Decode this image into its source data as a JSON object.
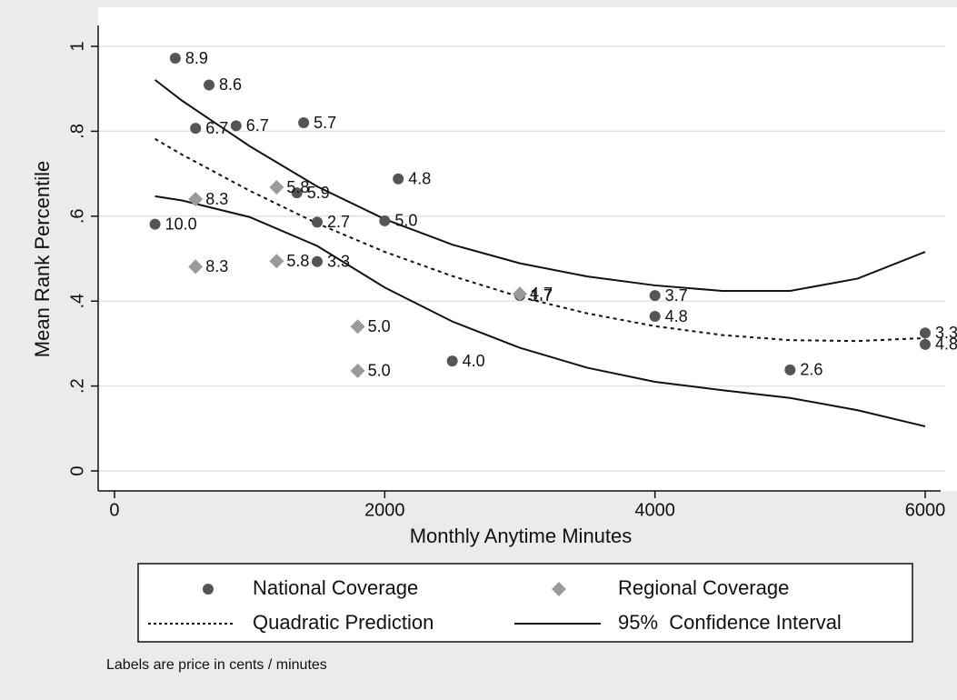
{
  "chart_data": {
    "type": "scatter",
    "xlabel": "Monthly Anytime Minutes",
    "ylabel": "Mean Rank Percentile",
    "note": "Labels are price in cents / minutes",
    "xlim": [
      -121,
      6148
    ],
    "ylim": [
      -0.047,
      1.092
    ],
    "xticks": [
      0,
      2000,
      4000,
      6000
    ],
    "yticks": [
      0,
      {
        "value": 0.2,
        "label": ".2"
      },
      {
        "value": 0.4,
        "label": ".4"
      },
      {
        "value": 0.6,
        "label": ".6"
      },
      {
        "value": 0.8,
        "label": ".8"
      },
      1
    ],
    "grid": true,
    "series": [
      {
        "name": "National Coverage",
        "kind": "points",
        "marker": "circle",
        "color": "#555555",
        "x": [
          450,
          700,
          600,
          900,
          1400,
          2100,
          300,
          1350,
          1500,
          2000,
          1500,
          3000,
          4000,
          4000,
          2500,
          5000,
          6000,
          6000
        ],
        "values": [
          0.972,
          0.909,
          0.807,
          0.813,
          0.82,
          0.688,
          0.581,
          0.655,
          0.586,
          0.589,
          0.493,
          0.413,
          0.413,
          0.364,
          0.259,
          0.238,
          0.325,
          0.298
        ],
        "point_labels": [
          "8.9",
          "8.6",
          "6.7",
          "6.7",
          "5.7",
          "4.8",
          "10.0",
          "5.9",
          "2.7",
          "5.0",
          "3.3",
          "1.7",
          "3.7",
          "4.8",
          "4.0",
          "2.6",
          "3.3",
          "4.8"
        ]
      },
      {
        "name": "Regional Coverage",
        "kind": "points",
        "marker": "diamond",
        "color": "#9a9a9a",
        "x": [
          600,
          600,
          1200,
          1200,
          1800,
          1800,
          3000
        ],
        "values": [
          0.64,
          0.481,
          0.668,
          0.494,
          0.34,
          0.236,
          0.417
        ],
        "point_labels": [
          "8.3",
          "8.3",
          "5.8",
          "5.8",
          "5.0",
          "5.0",
          "4.7"
        ]
      },
      {
        "name": "Quadratic Prediction",
        "kind": "line",
        "dash": "4 4",
        "color": "#111111",
        "x": [
          300,
          500,
          1000,
          1500,
          2000,
          2500,
          3000,
          3500,
          4000,
          4500,
          5000,
          5500,
          6000
        ],
        "values": [
          0.782,
          0.745,
          0.66,
          0.583,
          0.516,
          0.459,
          0.41,
          0.371,
          0.341,
          0.32,
          0.308,
          0.306,
          0.313
        ]
      },
      {
        "name": "95%  Confidence Interval",
        "kind": "band-lines",
        "color": "#111111",
        "x": [
          300,
          500,
          1000,
          1500,
          2000,
          2500,
          3000,
          3500,
          4000,
          4500,
          5000,
          5500,
          6000
        ],
        "upper": [
          0.921,
          0.872,
          0.765,
          0.67,
          0.593,
          0.533,
          0.489,
          0.458,
          0.437,
          0.424,
          0.424,
          0.453,
          0.516
        ],
        "lower": [
          0.647,
          0.637,
          0.598,
          0.53,
          0.432,
          0.352,
          0.29,
          0.243,
          0.21,
          0.19,
          0.172,
          0.143,
          0.105
        ]
      }
    ]
  }
}
